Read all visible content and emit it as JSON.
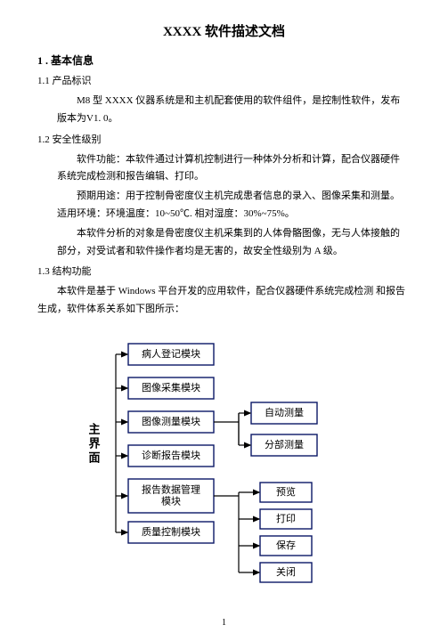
{
  "title": "XXXX 软件描述文档",
  "sec1": "1 . 基本信息",
  "sec1_1": "1.1 产品标识",
  "p1_1a": "M8 型 XXXX 仪器系统是和主机配套使用的软件组件，是控制性软件，发布  版本为V1. 0。",
  "sec1_2": "1.2 安全性级别",
  "p1_2a": "软件功能：本软件通过计算机控制进行一种体外分析和计算，配合仪器硬件  系统完成检测和报告编辑、打印。",
  "p1_2b": "预期用途：用于控制骨密度仪主机完成患者信息的录入、图像采集和测量。  适用环境：环境温度：10~50℃. 相对湿度：30%~75%。",
  "p1_2c": "本软件分析的对象是骨密度仪主机采集到的人体骨骼图像，无与人体接触的  部分，对受试者和软件操作者均是无害的，故安全性级别为 A 级。",
  "sec1_3": "1.3 结构功能",
  "p1_3a": "本软件是基于 Windows 平台开发的应用软件，配合仪器硬件系统完成检测  和报告生成，软件体系关系如下图所示：",
  "diagram": {
    "left_vlabel": "主界面",
    "boxes_left": [
      "病人登记模块",
      "图像采集模块",
      "图像测量模块",
      "诊断报告模块",
      "报告数据管理模块",
      "质量控制模块"
    ],
    "boxes_right_top": [
      "自动测量",
      "分部测量"
    ],
    "boxes_right_bottom": [
      "预览",
      "打印",
      "保存",
      "关闭"
    ],
    "box_border": "#0a1866",
    "line": "#000",
    "arrow_stroke_w": 1.2,
    "box_stroke_w": 1.4,
    "fontsize": 11
  },
  "page_num": "1"
}
